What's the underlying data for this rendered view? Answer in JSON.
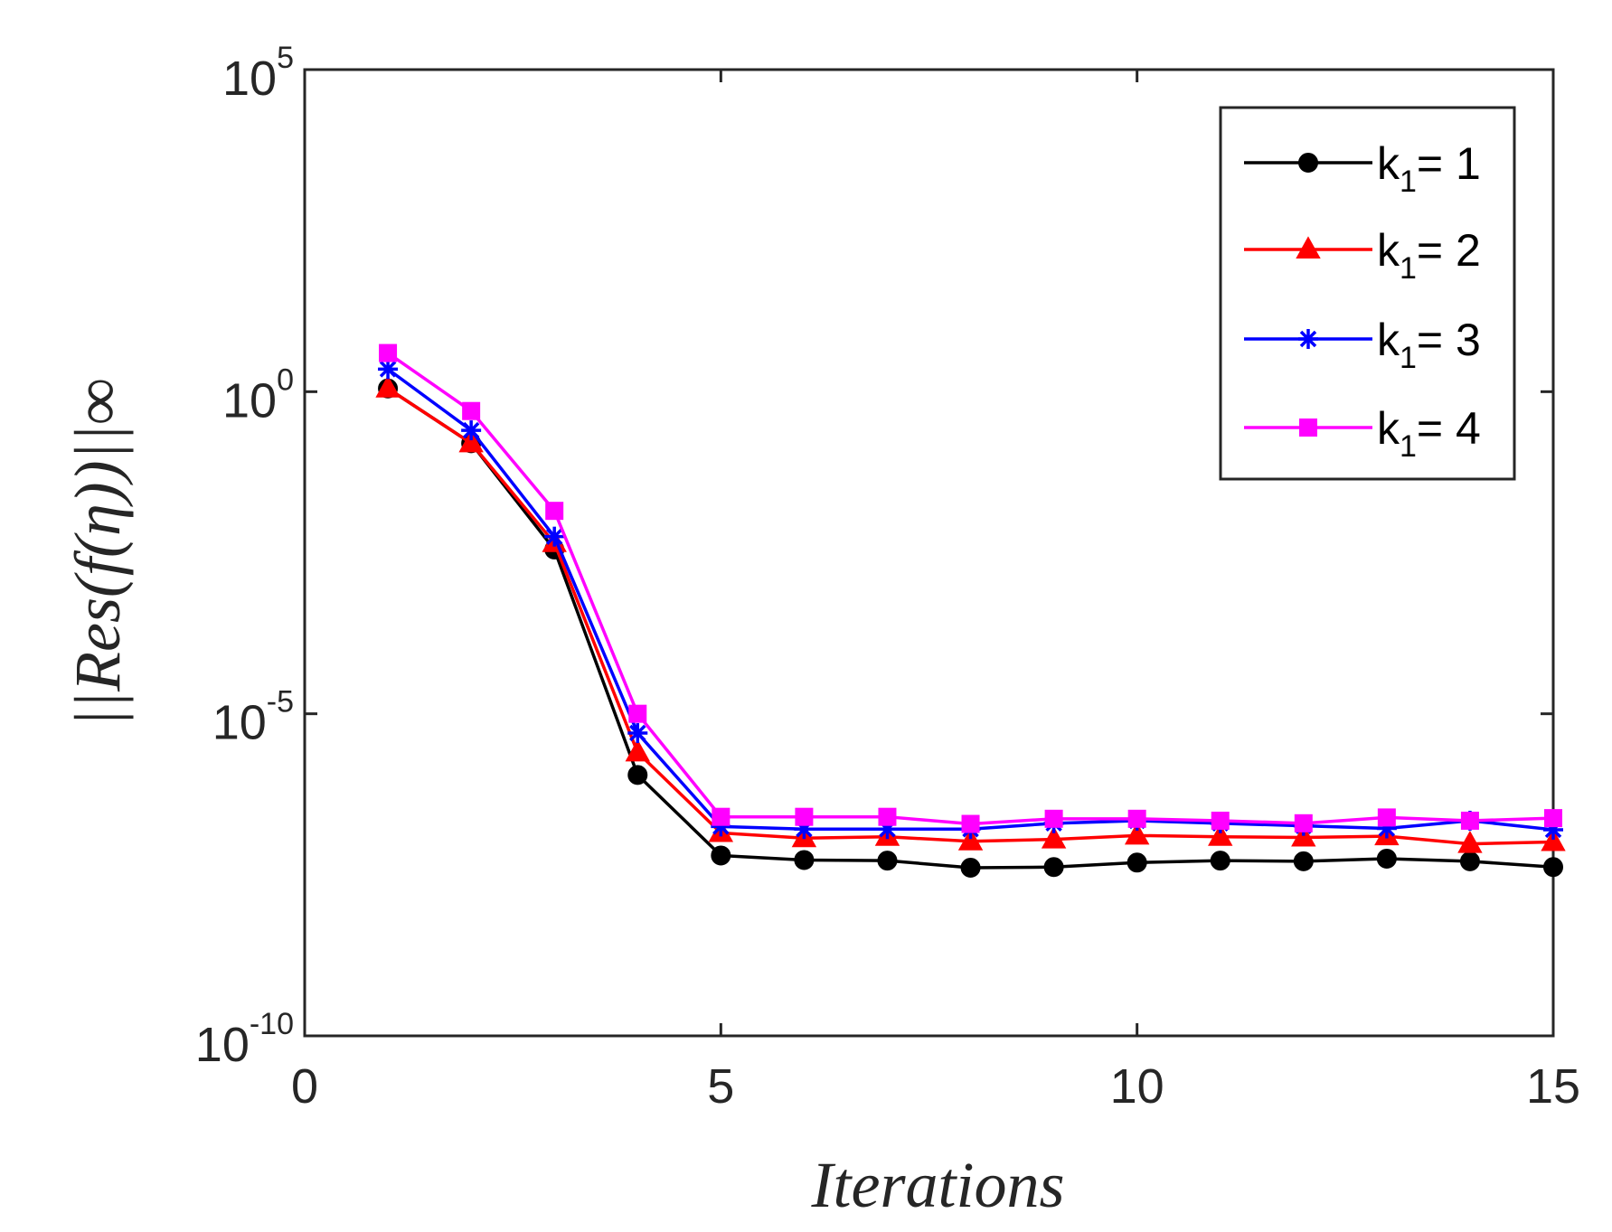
{
  "chart_data": {
    "type": "line",
    "yscale": "log",
    "xlabel": "Iterations",
    "ylabel": "||Res(f(η))||∞",
    "xlim": [
      0,
      15
    ],
    "ylim_exponent": [
      -10,
      5
    ],
    "x_ticks": [
      {
        "value": 0,
        "label": "0"
      },
      {
        "value": 5,
        "label": "5"
      },
      {
        "value": 10,
        "label": "10"
      },
      {
        "value": 15,
        "label": "15"
      }
    ],
    "y_ticks": [
      {
        "exponent": 5,
        "base": "10",
        "exp_label": "5"
      },
      {
        "exponent": 0,
        "base": "10",
        "exp_label": "0"
      },
      {
        "exponent": -5,
        "base": "10",
        "exp_label": "-5"
      },
      {
        "exponent": -10,
        "base": "10",
        "exp_label": "-10"
      }
    ],
    "x": [
      1,
      2,
      3,
      4,
      5,
      6,
      7,
      8,
      9,
      10,
      11,
      12,
      13,
      14,
      15
    ],
    "series": [
      {
        "name": "k1 = 1",
        "legend_main": "k",
        "legend_sub": "1",
        "legend_value": "= 1",
        "color": "#000000",
        "marker": "circle",
        "log10_values": [
          0.05,
          -0.8,
          -2.45,
          -5.95,
          -7.2,
          -7.27,
          -7.28,
          -7.39,
          -7.38,
          -7.31,
          -7.28,
          -7.29,
          -7.25,
          -7.29,
          -7.38
        ]
      },
      {
        "name": "k1 = 2",
        "legend_main": "k",
        "legend_sub": "1",
        "legend_value": "= 2",
        "color": "#ff0000",
        "marker": "triangle",
        "log10_values": [
          0.05,
          -0.8,
          -2.35,
          -5.6,
          -6.85,
          -6.93,
          -6.91,
          -6.98,
          -6.95,
          -6.89,
          -6.91,
          -6.92,
          -6.9,
          -7.02,
          -6.99
        ]
      },
      {
        "name": "k1 = 3",
        "legend_main": "k",
        "legend_sub": "1",
        "legend_value": "= 3",
        "color": "#0000ff",
        "marker": "asterisk",
        "log10_values": [
          0.35,
          -0.6,
          -2.25,
          -5.3,
          -6.75,
          -6.79,
          -6.79,
          -6.79,
          -6.7,
          -6.66,
          -6.7,
          -6.74,
          -6.78,
          -6.66,
          -6.8
        ]
      },
      {
        "name": "k1 = 4",
        "legend_main": "k",
        "legend_sub": "1",
        "legend_value": "= 4",
        "color": "#ff00ff",
        "marker": "square",
        "log10_values": [
          0.6,
          -0.3,
          -1.85,
          -5.0,
          -6.6,
          -6.6,
          -6.6,
          -6.71,
          -6.63,
          -6.63,
          -6.66,
          -6.7,
          -6.61,
          -6.66,
          -6.62
        ]
      }
    ]
  }
}
